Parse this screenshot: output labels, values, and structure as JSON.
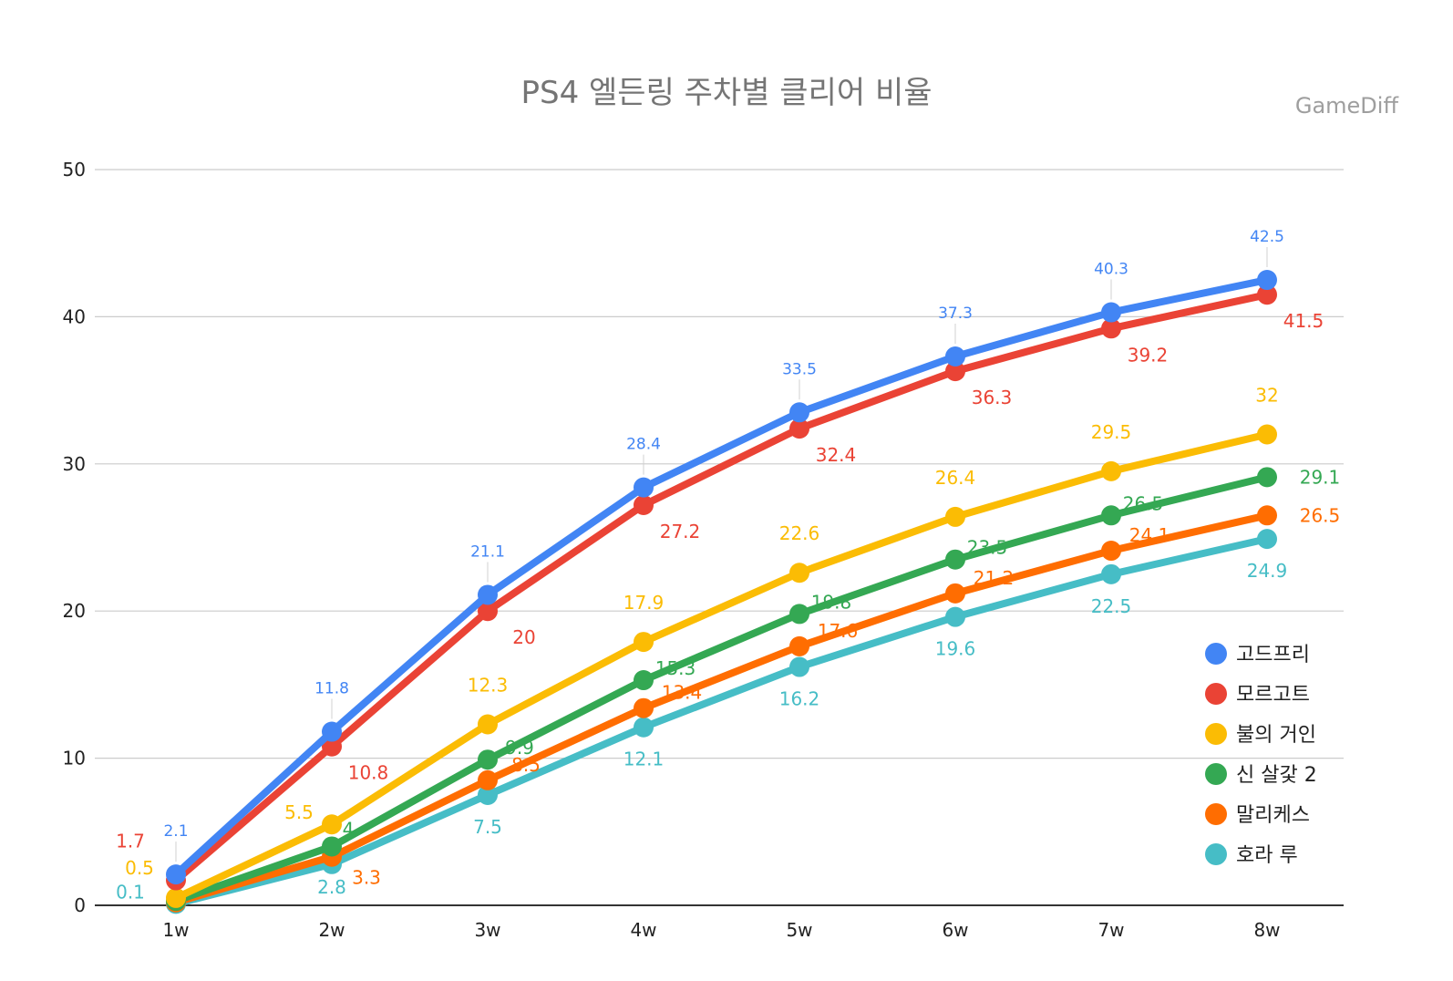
{
  "watermark": "GameDiff",
  "chart_data": {
    "type": "line",
    "title": "PS4 엘든링 주차별 클리어 비율",
    "xlabel": "",
    "ylabel": "",
    "categories": [
      "1w",
      "2w",
      "3w",
      "4w",
      "5w",
      "6w",
      "7w",
      "8w"
    ],
    "ylim": [
      0,
      50
    ],
    "yticks": [
      0,
      10,
      20,
      30,
      40,
      50
    ],
    "grid": true,
    "legend": "right",
    "series": [
      {
        "name": "고드프리",
        "color": "#4285f4",
        "values": [
          2.1,
          11.8,
          21.1,
          28.4,
          33.5,
          37.3,
          40.3,
          42.5
        ],
        "labels": [
          "2.1",
          "11.8",
          "21.1",
          "28.4",
          "33.5",
          "37.3",
          "40.3",
          "42.5"
        ]
      },
      {
        "name": "모르고트",
        "color": "#ea4335",
        "values": [
          1.7,
          10.8,
          20,
          27.2,
          32.4,
          36.3,
          39.2,
          41.5
        ],
        "labels": [
          "1.7",
          "10.8",
          "20",
          "27.2",
          "32.4",
          "36.3",
          "39.2",
          "41.5"
        ]
      },
      {
        "name": "불의 거인",
        "color": "#fbbc04",
        "values": [
          0.5,
          5.5,
          12.3,
          17.9,
          22.6,
          26.4,
          29.5,
          32
        ],
        "labels": [
          "0.5",
          "5.5",
          "12.3",
          "17.9",
          "22.6",
          "26.4",
          "29.5",
          "32"
        ]
      },
      {
        "name": "신 살갗 2",
        "color": "#34a853",
        "values": [
          0.3,
          4,
          9.9,
          15.3,
          19.8,
          23.5,
          26.5,
          29.1
        ],
        "labels": [
          "",
          "4",
          "9.9",
          "15.3",
          "19.8",
          "23.5",
          "26.5",
          "29.1"
        ]
      },
      {
        "name": "말리케스",
        "color": "#ff6d01",
        "values": [
          0.2,
          3.3,
          8.5,
          13.4,
          17.6,
          21.2,
          24.1,
          26.5
        ],
        "labels": [
          "",
          "3.3",
          "8.5",
          "13.4",
          "17.6",
          "21.2",
          "24.1",
          "26.5"
        ]
      },
      {
        "name": "호라 루",
        "color": "#46bdc6",
        "values": [
          0.1,
          2.8,
          7.5,
          12.1,
          16.2,
          19.6,
          22.5,
          24.9
        ],
        "labels": [
          "0.1",
          "2.8",
          "7.5",
          "12.1",
          "16.2",
          "19.6",
          "22.5",
          "24.9"
        ]
      }
    ]
  }
}
